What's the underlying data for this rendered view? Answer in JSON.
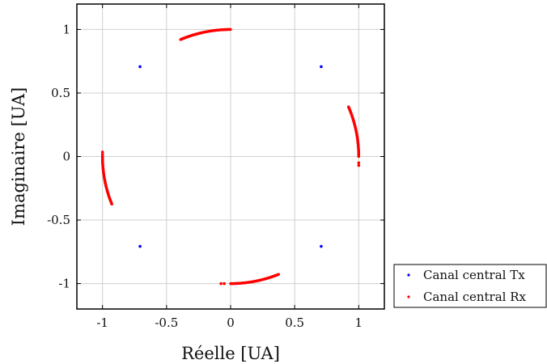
{
  "chart_data": {
    "type": "scatter",
    "title": "",
    "xlabel": "Réelle [UA]",
    "ylabel": "Imaginaire [UA]",
    "xlim": [
      -1.2,
      1.2
    ],
    "ylim": [
      -1.2,
      1.2
    ],
    "xticks": [
      -1,
      -0.5,
      0,
      0.5,
      1
    ],
    "xtick_labels": [
      "-1",
      "-0.5",
      "0",
      "0.5",
      "1"
    ],
    "yticks": [
      -1,
      -0.5,
      0,
      0.5,
      1
    ],
    "ytick_labels": [
      "-1",
      "-0.5",
      "0",
      "0.5",
      "1"
    ],
    "grid": true,
    "legend_position": "outside-bottom-right",
    "series": [
      {
        "name": "Canal central Tx",
        "color": "#0000ff",
        "marker": "dot",
        "points": [
          [
            0.707,
            0.707
          ],
          [
            -0.707,
            0.707
          ],
          [
            -0.707,
            -0.707
          ],
          [
            0.707,
            -0.707
          ]
        ]
      },
      {
        "name": "Canal central Rx",
        "color": "#ff0000",
        "marker": "dot",
        "arcs": [
          {
            "center_deg": 90,
            "from_deg": 90,
            "to_deg": 113
          },
          {
            "center_deg": 180,
            "from_deg": 180,
            "to_deg": 202
          },
          {
            "center_deg": 270,
            "from_deg": 270,
            "to_deg": 292
          },
          {
            "center_deg": 0,
            "from_deg": 0,
            "to_deg": 23
          }
        ],
        "isolated_points": [
          [
            -1.0,
            0.035
          ],
          [
            -1.0,
            0.015
          ],
          [
            -0.075,
            -1.0
          ],
          [
            -0.05,
            -1.0
          ],
          [
            1.0,
            -0.05
          ],
          [
            1.0,
            -0.07
          ]
        ]
      }
    ]
  }
}
